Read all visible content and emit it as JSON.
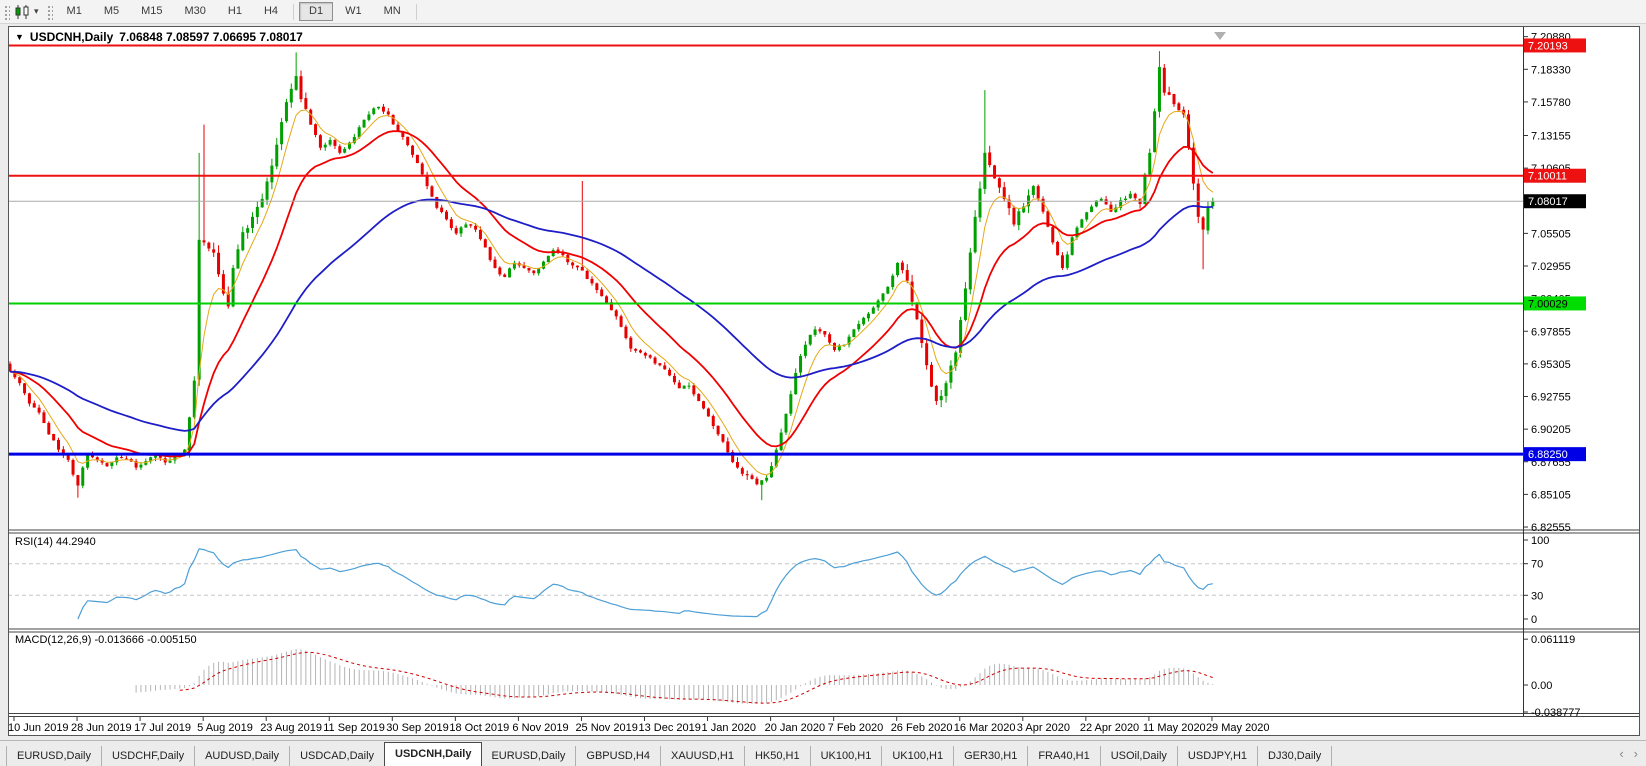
{
  "toolbar": {
    "timeframes": [
      {
        "label": "M1",
        "active": false
      },
      {
        "label": "M5",
        "active": false
      },
      {
        "label": "M15",
        "active": false
      },
      {
        "label": "M30",
        "active": false
      },
      {
        "label": "H1",
        "active": false
      },
      {
        "label": "H4",
        "active": false
      },
      {
        "label": "D1",
        "active": true
      },
      {
        "label": "W1",
        "active": false
      },
      {
        "label": "MN",
        "active": false
      }
    ]
  },
  "icons": {
    "chart_caret": "▼",
    "toolbar_caret": "▾",
    "nav_left": "‹",
    "nav_right": "›"
  },
  "chart_data": {
    "type": "candlestick",
    "symbol_display": "USDCNH,Daily",
    "ohlc_text": "7.06848 7.08597 7.06695 7.08017",
    "open": "7.06848",
    "high": "7.08597",
    "low": "7.06695",
    "close": "7.08017",
    "count": 249,
    "layout": {
      "price_top": 7.214,
      "price_bottom": 6.824,
      "bar_step": 4.85,
      "bars_per_label": 13,
      "legend_position": "top-left",
      "grid": false
    },
    "colors": {
      "up": "#00A000",
      "down": "#E60000",
      "ema_fast": "#E6A817",
      "ema_mid": "#F00000",
      "ema_slow": "#1E1EC8",
      "rsi": "#4D9FD6",
      "macd_hist": "#B4B4B4",
      "macd_signal": "#D00000",
      "axis": "#3C3C3C",
      "current": "#AAAAAA"
    },
    "y_ticks": [
      "7.20880",
      "7.18330",
      "7.15780",
      "7.13155",
      "7.10605",
      "7.08055",
      "7.05505",
      "7.02955",
      "7.00405",
      "6.97855",
      "6.95305",
      "6.92755",
      "6.90205",
      "6.87655",
      "6.85105",
      "6.82555"
    ],
    "x_labels": [
      "10 Jun 2019",
      "28 Jun 2019",
      "17 Jul 2019",
      "5 Aug 2019",
      "23 Aug 2019",
      "11 Sep 2019",
      "30 Sep 2019",
      "18 Oct 2019",
      "6 Nov 2019",
      "25 Nov 2019",
      "13 Dec 2019",
      "1 Jan 2020",
      "20 Jan 2020",
      "7 Feb 2020",
      "26 Feb 2020",
      "16 Mar 2020",
      "3 Apr 2020",
      "22 Apr 2020",
      "11 May 2020",
      "29 May 2020"
    ],
    "hlines": [
      {
        "price": 7.20193,
        "label": "7.20193",
        "color": "#EE1111",
        "width": 2,
        "badge_bg": "#EE1111",
        "badge_fg": "#FFFFFF"
      },
      {
        "price": 7.10011,
        "label": "7.10011",
        "color": "#EE1111",
        "width": 2,
        "badge_bg": "#EE1111",
        "badge_fg": "#FFFFFF"
      },
      {
        "price": 7.00029,
        "label": "7.00029",
        "color": "#00D000",
        "width": 2,
        "badge_bg": "#00DD00",
        "badge_fg": "#000000"
      },
      {
        "price": 6.8825,
        "label": "6.88250",
        "color": "#0000E6",
        "width": 3,
        "badge_bg": "#0000E6",
        "badge_fg": "#FFFFFF"
      }
    ],
    "current_price": {
      "price": 7.08017,
      "label": "7.08017",
      "color": "#AAAAAA",
      "badge_bg": "#000000",
      "badge_fg": "#FFFFFF"
    },
    "anchors": [
      [
        0,
        6.947
      ],
      [
        2,
        6.938
      ],
      [
        4,
        6.922
      ],
      [
        6,
        6.915
      ],
      [
        8,
        6.898
      ],
      [
        10,
        6.886
      ],
      [
        12,
        6.878
      ],
      [
        14,
        6.858
      ],
      [
        15,
        6.872
      ],
      [
        16,
        6.882
      ],
      [
        18,
        6.878
      ],
      [
        20,
        6.873
      ],
      [
        22,
        6.88
      ],
      [
        24,
        6.879
      ],
      [
        26,
        6.872
      ],
      [
        28,
        6.877
      ],
      [
        30,
        6.882
      ],
      [
        32,
        6.876
      ],
      [
        34,
        6.881
      ],
      [
        36,
        6.886
      ],
      [
        38,
        6.94
      ],
      [
        39,
        7.05
      ],
      [
        40,
        7.048
      ],
      [
        42,
        7.04
      ],
      [
        44,
        7.008
      ],
      [
        45,
        6.998
      ],
      [
        46,
        7.028
      ],
      [
        48,
        7.056
      ],
      [
        50,
        7.068
      ],
      [
        52,
        7.082
      ],
      [
        54,
        7.108
      ],
      [
        56,
        7.142
      ],
      [
        58,
        7.168
      ],
      [
        59,
        7.178
      ],
      [
        60,
        7.16
      ],
      [
        62,
        7.14
      ],
      [
        64,
        7.122
      ],
      [
        66,
        7.128
      ],
      [
        68,
        7.118
      ],
      [
        70,
        7.126
      ],
      [
        72,
        7.138
      ],
      [
        74,
        7.148
      ],
      [
        76,
        7.154
      ],
      [
        78,
        7.148
      ],
      [
        80,
        7.135
      ],
      [
        82,
        7.124
      ],
      [
        84,
        7.11
      ],
      [
        86,
        7.092
      ],
      [
        88,
        7.075
      ],
      [
        90,
        7.066
      ],
      [
        92,
        7.055
      ],
      [
        94,
        7.062
      ],
      [
        96,
        7.058
      ],
      [
        98,
        7.044
      ],
      [
        100,
        7.028
      ],
      [
        102,
        7.021
      ],
      [
        104,
        7.032
      ],
      [
        106,
        7.028
      ],
      [
        108,
        7.024
      ],
      [
        110,
        7.033
      ],
      [
        112,
        7.042
      ],
      [
        114,
        7.038
      ],
      [
        116,
        7.03
      ],
      [
        118,
        7.026
      ],
      [
        120,
        7.016
      ],
      [
        122,
        7.006
      ],
      [
        124,
        6.995
      ],
      [
        126,
        6.982
      ],
      [
        128,
        6.965
      ],
      [
        130,
        6.962
      ],
      [
        132,
        6.958
      ],
      [
        134,
        6.952
      ],
      [
        136,
        6.944
      ],
      [
        138,
        6.934
      ],
      [
        140,
        6.936
      ],
      [
        142,
        6.924
      ],
      [
        144,
        6.912
      ],
      [
        146,
        6.898
      ],
      [
        148,
        6.884
      ],
      [
        150,
        6.872
      ],
      [
        152,
        6.866
      ],
      [
        154,
        6.859
      ],
      [
        156,
        6.864
      ],
      [
        158,
        6.886
      ],
      [
        160,
        6.914
      ],
      [
        162,
        6.946
      ],
      [
        164,
        6.968
      ],
      [
        166,
        6.98
      ],
      [
        168,
        6.976
      ],
      [
        170,
        6.964
      ],
      [
        172,
        6.968
      ],
      [
        174,
        6.98
      ],
      [
        176,
        6.989
      ],
      [
        178,
        6.997
      ],
      [
        180,
        7.008
      ],
      [
        182,
        7.022
      ],
      [
        183,
        7.032
      ],
      [
        185,
        7.018
      ],
      [
        187,
        6.988
      ],
      [
        189,
        6.952
      ],
      [
        191,
        6.924
      ],
      [
        193,
        6.938
      ],
      [
        195,
        6.962
      ],
      [
        197,
        7.012
      ],
      [
        199,
        7.068
      ],
      [
        201,
        7.118
      ],
      [
        203,
        7.098
      ],
      [
        205,
        7.082
      ],
      [
        207,
        7.062
      ],
      [
        209,
        7.076
      ],
      [
        211,
        7.092
      ],
      [
        213,
        7.072
      ],
      [
        215,
        7.048
      ],
      [
        217,
        7.028
      ],
      [
        219,
        7.052
      ],
      [
        221,
        7.066
      ],
      [
        223,
        7.076
      ],
      [
        225,
        7.082
      ],
      [
        227,
        7.072
      ],
      [
        229,
        7.081
      ],
      [
        231,
        7.086
      ],
      [
        233,
        7.078
      ],
      [
        235,
        7.118
      ],
      [
        237,
        7.185
      ],
      [
        238,
        7.165
      ],
      [
        240,
        7.156
      ],
      [
        242,
        7.148
      ],
      [
        243,
        7.122
      ],
      [
        244,
        7.094
      ],
      [
        245,
        7.068
      ],
      [
        246,
        7.058
      ],
      [
        247,
        7.076
      ],
      [
        248,
        7.08
      ]
    ],
    "wicks": [
      {
        "i": 14,
        "low": 6.8485
      },
      {
        "i": 39,
        "high": 7.118
      },
      {
        "i": 40,
        "high": 7.14
      },
      {
        "i": 59,
        "high": 7.1965
      },
      {
        "i": 118,
        "high": 7.096
      },
      {
        "i": 155,
        "low": 6.8465
      },
      {
        "i": 201,
        "high": 7.167
      },
      {
        "i": 237,
        "high": 7.1975
      },
      {
        "i": 246,
        "low": 7.027
      }
    ],
    "base_range": 0.0065,
    "vol_zones": [
      {
        "from": 36,
        "to": 62,
        "range": 0.014
      },
      {
        "from": 148,
        "to": 166,
        "range": 0.009
      },
      {
        "from": 185,
        "to": 210,
        "range": 0.013
      },
      {
        "from": 233,
        "to": 248,
        "range": 0.012
      }
    ],
    "overlays": [
      {
        "type": "ema",
        "period": 6,
        "color": "#E6A817",
        "width": 1
      },
      {
        "type": "ema",
        "period": 18,
        "color": "#F00000",
        "width": 1.8
      },
      {
        "type": "ema",
        "period": 55,
        "color": "#1E1EC8",
        "width": 1.8
      }
    ],
    "rsi": {
      "label": "RSI(14) 44.2940",
      "period": 14,
      "value": "44.2940",
      "ticks": [
        "100",
        "70",
        "30",
        "0"
      ],
      "tick_values": [
        100,
        70,
        30,
        0
      ],
      "dashed_levels": [
        70,
        30
      ],
      "ylim": [
        0,
        100
      ]
    },
    "macd": {
      "label": "MACD(12,26,9) -0.013666 -0.005150",
      "fast": 12,
      "slow": 26,
      "signal": 9,
      "macd_value": "-0.013666",
      "signal_value": "-0.005150",
      "ticks": [
        "0.061119",
        "0.00",
        "-0.038777"
      ],
      "tick_values": [
        0.061119,
        0.0,
        -0.038777
      ]
    }
  },
  "tabbar": {
    "nav_left": "‹",
    "nav_right": "›",
    "tabs": [
      {
        "label": "EURUSD,Daily",
        "active": false
      },
      {
        "label": "USDCHF,Daily",
        "active": false
      },
      {
        "label": "AUDUSD,Daily",
        "active": false
      },
      {
        "label": "USDCAD,Daily",
        "active": false
      },
      {
        "label": "USDCNH,Daily",
        "active": true
      },
      {
        "label": "EURUSD,Daily",
        "active": false
      },
      {
        "label": "GBPUSD,H4",
        "active": false
      },
      {
        "label": "XAUUSD,H1",
        "active": false
      },
      {
        "label": "HK50,H1",
        "active": false
      },
      {
        "label": "UK100,H1",
        "active": false
      },
      {
        "label": "UK100,H1",
        "active": false
      },
      {
        "label": "GER30,H1",
        "active": false
      },
      {
        "label": "FRA40,H1",
        "active": false
      },
      {
        "label": "USOil,Daily",
        "active": false
      },
      {
        "label": "USDJPY,H1",
        "active": false
      },
      {
        "label": "DJ30,Daily",
        "active": false
      }
    ]
  }
}
